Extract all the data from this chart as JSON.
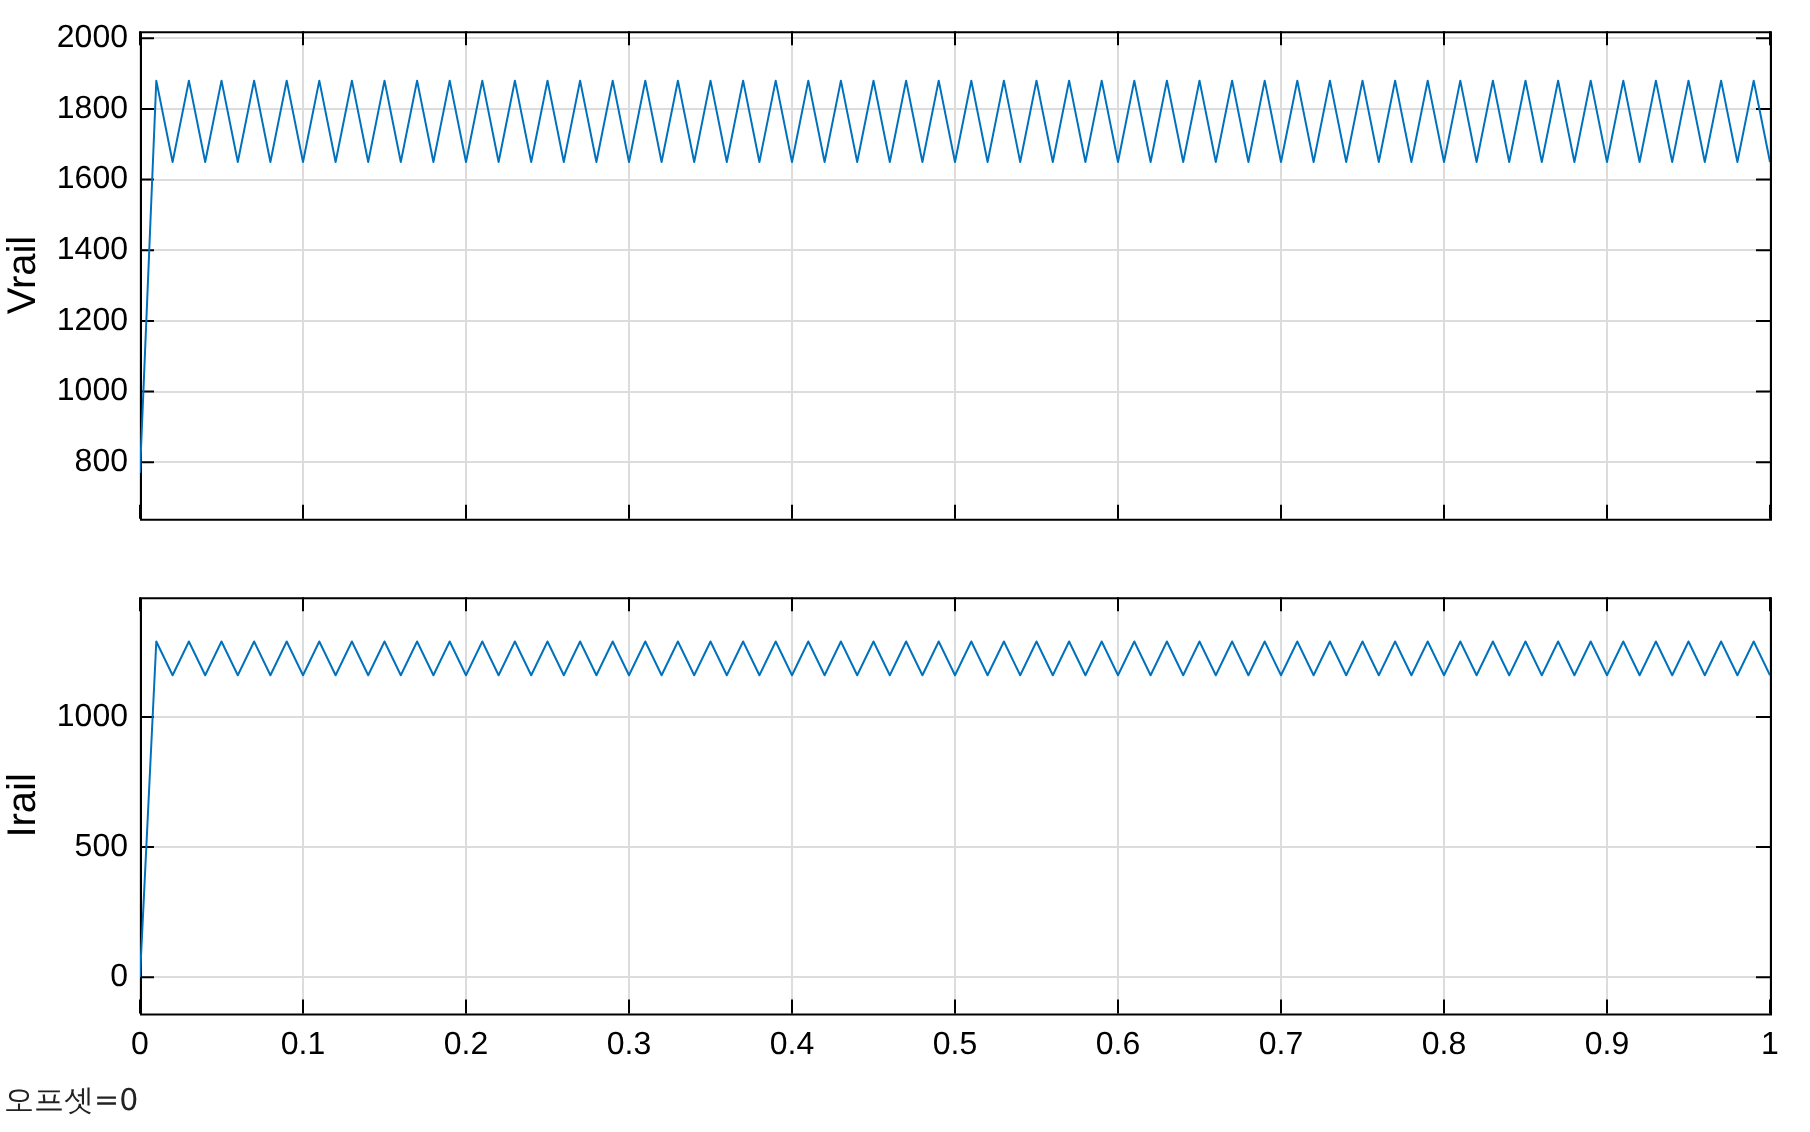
{
  "chart_data": [
    {
      "type": "line",
      "ylabel": "Vrail",
      "xlim": [
        0,
        1
      ],
      "xticks": [
        0,
        0.1,
        0.2,
        0.3,
        0.4,
        0.5,
        0.6,
        0.7,
        0.8,
        0.9,
        1
      ],
      "ylim": [
        640,
        2020
      ],
      "yticks": [
        800,
        1000,
        1200,
        1400,
        1600,
        1800,
        2000
      ],
      "grid": true,
      "tick_labels": "y",
      "marker": "none",
      "x": [
        0,
        0.01,
        0.02,
        0.03,
        0.04,
        0.05,
        0.06,
        0.07,
        0.08,
        0.09,
        0.1,
        0.11,
        0.12,
        0.13,
        0.14,
        0.15,
        0.16,
        0.17,
        0.18,
        0.19,
        0.2,
        0.21,
        0.22,
        0.23,
        0.24,
        0.25,
        0.26,
        0.27,
        0.28,
        0.29,
        0.3,
        0.31,
        0.32,
        0.33,
        0.34,
        0.35,
        0.36,
        0.37,
        0.38,
        0.39,
        0.4,
        0.41,
        0.42,
        0.43,
        0.44,
        0.45,
        0.46,
        0.47,
        0.48,
        0.49,
        0.5,
        0.51,
        0.52,
        0.53,
        0.54,
        0.55,
        0.56,
        0.57,
        0.58,
        0.59,
        0.6,
        0.61,
        0.62,
        0.63,
        0.64,
        0.65,
        0.66,
        0.67,
        0.68,
        0.69,
        0.7,
        0.71,
        0.72,
        0.73,
        0.74,
        0.75,
        0.76,
        0.77,
        0.78,
        0.79,
        0.8,
        0.81,
        0.82,
        0.83,
        0.84,
        0.85,
        0.86,
        0.87,
        0.88,
        0.89,
        0.9,
        0.91,
        0.92,
        0.93,
        0.94,
        0.95,
        0.96,
        0.97,
        0.98,
        0.99,
        1
      ],
      "series": [
        {
          "color": "#0072bd",
          "values": [
            770,
            1880,
            1650,
            1880,
            1650,
            1880,
            1650,
            1880,
            1650,
            1880,
            1650,
            1880,
            1650,
            1880,
            1650,
            1880,
            1650,
            1880,
            1650,
            1880,
            1650,
            1880,
            1650,
            1880,
            1650,
            1880,
            1650,
            1880,
            1650,
            1880,
            1650,
            1880,
            1650,
            1880,
            1650,
            1880,
            1650,
            1880,
            1650,
            1880,
            1650,
            1880,
            1650,
            1880,
            1650,
            1880,
            1650,
            1880,
            1650,
            1880,
            1650,
            1880,
            1650,
            1880,
            1650,
            1880,
            1650,
            1880,
            1650,
            1880,
            1650,
            1880,
            1650,
            1880,
            1650,
            1880,
            1650,
            1880,
            1650,
            1880,
            1650,
            1880,
            1650,
            1880,
            1650,
            1880,
            1650,
            1880,
            1650,
            1880,
            1650,
            1880,
            1650,
            1880,
            1650,
            1880,
            1650,
            1880,
            1650,
            1880,
            1650,
            1880,
            1650,
            1880,
            1650,
            1880,
            1650,
            1880,
            1650,
            1880,
            1650
          ]
        }
      ]
    },
    {
      "type": "line",
      "ylabel": "Irail",
      "xlim": [
        0,
        1
      ],
      "xticks": [
        0,
        0.1,
        0.2,
        0.3,
        0.4,
        0.5,
        0.6,
        0.7,
        0.8,
        0.9,
        1
      ],
      "ylim": [
        -140,
        1460
      ],
      "yticks": [
        0,
        500,
        1000
      ],
      "grid": true,
      "marker": "none",
      "annotations": [
        "오프셋=0"
      ],
      "x": [
        0,
        0.01,
        0.02,
        0.03,
        0.04,
        0.05,
        0.06,
        0.07,
        0.08,
        0.09,
        0.1,
        0.11,
        0.12,
        0.13,
        0.14,
        0.15,
        0.16,
        0.17,
        0.18,
        0.19,
        0.2,
        0.21,
        0.22,
        0.23,
        0.24,
        0.25,
        0.26,
        0.27,
        0.28,
        0.29,
        0.3,
        0.31,
        0.32,
        0.33,
        0.34,
        0.35,
        0.36,
        0.37,
        0.38,
        0.39,
        0.4,
        0.41,
        0.42,
        0.43,
        0.44,
        0.45,
        0.46,
        0.47,
        0.48,
        0.49,
        0.5,
        0.51,
        0.52,
        0.53,
        0.54,
        0.55,
        0.56,
        0.57,
        0.58,
        0.59,
        0.6,
        0.61,
        0.62,
        0.63,
        0.64,
        0.65,
        0.66,
        0.67,
        0.68,
        0.69,
        0.7,
        0.71,
        0.72,
        0.73,
        0.74,
        0.75,
        0.76,
        0.77,
        0.78,
        0.79,
        0.8,
        0.81,
        0.82,
        0.83,
        0.84,
        0.85,
        0.86,
        0.87,
        0.88,
        0.89,
        0.9,
        0.91,
        0.92,
        0.93,
        0.94,
        0.95,
        0.96,
        0.97,
        0.98,
        0.99,
        1
      ],
      "series": [
        {
          "color": "#0072bd",
          "values": [
            0,
            1290,
            1160,
            1290,
            1160,
            1290,
            1160,
            1290,
            1160,
            1290,
            1160,
            1290,
            1160,
            1290,
            1160,
            1290,
            1160,
            1290,
            1160,
            1290,
            1160,
            1290,
            1160,
            1290,
            1160,
            1290,
            1160,
            1290,
            1160,
            1290,
            1160,
            1290,
            1160,
            1290,
            1160,
            1290,
            1160,
            1290,
            1160,
            1290,
            1160,
            1290,
            1160,
            1290,
            1160,
            1290,
            1160,
            1290,
            1160,
            1290,
            1160,
            1290,
            1160,
            1290,
            1160,
            1290,
            1160,
            1290,
            1160,
            1290,
            1160,
            1290,
            1160,
            1290,
            1160,
            1290,
            1160,
            1290,
            1160,
            1290,
            1160,
            1290,
            1160,
            1290,
            1160,
            1290,
            1160,
            1290,
            1160,
            1290,
            1160,
            1290,
            1160,
            1290,
            1160,
            1290,
            1160,
            1290,
            1160,
            1290,
            1160,
            1290,
            1160,
            1290,
            1160,
            1290,
            1160,
            1290,
            1160,
            1290,
            1160
          ]
        }
      ]
    }
  ]
}
